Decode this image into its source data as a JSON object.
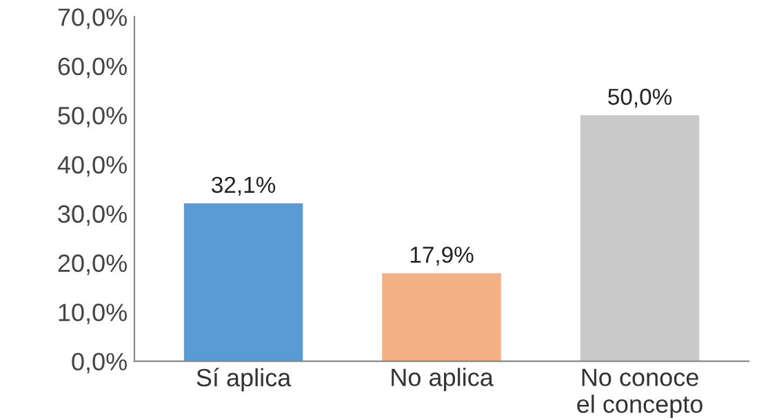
{
  "chart_data": {
    "type": "bar",
    "categories": [
      "Sí aplica",
      "No aplica",
      "No conoce\nel concepto"
    ],
    "values": [
      32.1,
      17.9,
      50.0
    ],
    "colors": [
      "#5b9bd5",
      "#f4b183",
      "#c9c9c9"
    ],
    "value_labels": [
      "32,1%",
      "17,9%",
      "50,0%"
    ],
    "ylim": [
      0,
      70
    ],
    "yticks": [
      {
        "value": 0,
        "label": "0,0%"
      },
      {
        "value": 10,
        "label": "10,0%"
      },
      {
        "value": 20,
        "label": "20,0%"
      },
      {
        "value": 30,
        "label": "30,0%"
      },
      {
        "value": 40,
        "label": "40,0%"
      },
      {
        "value": 50,
        "label": "50,0%"
      },
      {
        "value": 60,
        "label": "60,0%"
      },
      {
        "value": 70,
        "label": "70,0%"
      }
    ],
    "grid": false,
    "legend": false
  }
}
